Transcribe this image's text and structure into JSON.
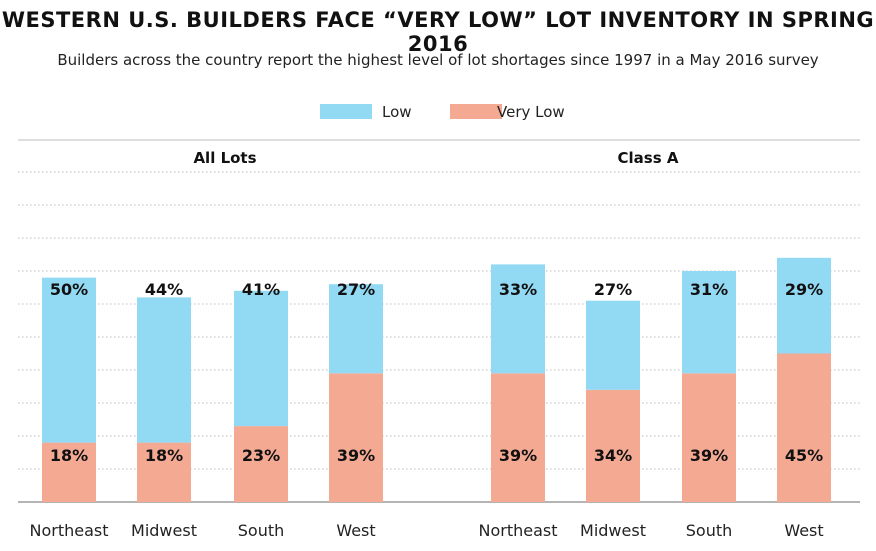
{
  "title": "WESTERN U.S. BUILDERS FACE “VERY LOW” LOT INVENTORY IN SPRING 2016",
  "subtitle": "Builders across the country report the highest level of lot shortages since 1997 in a May 2016 survey",
  "colors": {
    "low": "#92d9f3",
    "very_low": "#f4a993",
    "grid": "#bdbdbd",
    "axis": "#888888"
  },
  "chart_data": [
    {
      "type": "bar",
      "stacked": true,
      "title": "All Lots",
      "categories": [
        "Northeast",
        "Midwest",
        "South",
        "West"
      ],
      "series": [
        {
          "name": "Very Low",
          "values": [
            18,
            18,
            23,
            39
          ]
        },
        {
          "name": "Low",
          "values": [
            50,
            44,
            41,
            27
          ]
        }
      ],
      "value_labels": [
        [
          "18%",
          "18%",
          "23%",
          "39%"
        ],
        [
          "50%",
          "44%",
          "41%",
          "27%"
        ]
      ],
      "ylim": [
        0,
        100
      ],
      "grid": true,
      "legend": "top-center"
    },
    {
      "type": "bar",
      "stacked": true,
      "title": "Class A",
      "categories": [
        "Northeast",
        "Midwest",
        "South",
        "West"
      ],
      "series": [
        {
          "name": "Very Low",
          "values": [
            39,
            34,
            39,
            45
          ]
        },
        {
          "name": "Low",
          "values": [
            33,
            27,
            31,
            29
          ]
        }
      ],
      "value_labels": [
        [
          "39%",
          "34%",
          "39%",
          "45%"
        ],
        [
          "33%",
          "27%",
          "31%",
          "29%"
        ]
      ],
      "ylim": [
        0,
        100
      ],
      "grid": true,
      "legend": "top-center"
    }
  ],
  "legend": [
    {
      "name": "Low",
      "color": "#92d9f3"
    },
    {
      "name": "Very Low",
      "color": "#f4a993"
    }
  ]
}
